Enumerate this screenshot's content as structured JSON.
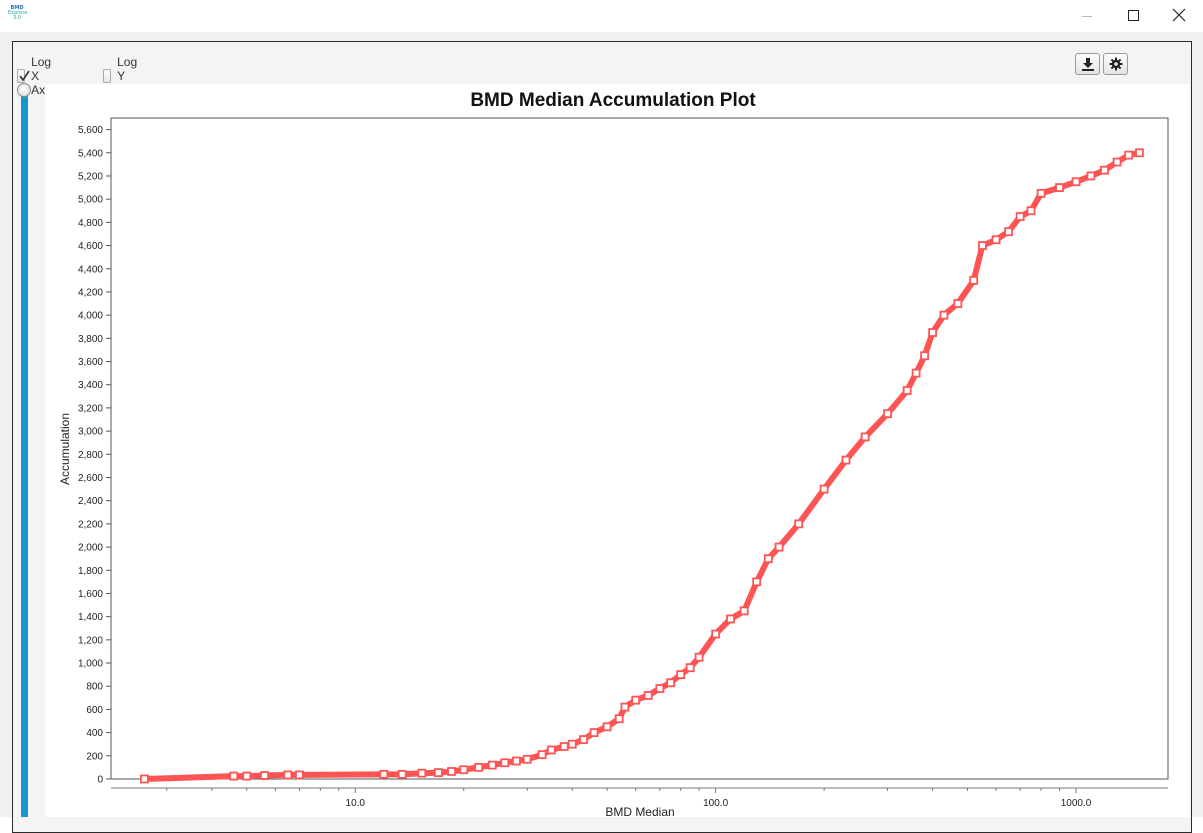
{
  "window": {
    "app_icon_text": [
      "BMD",
      "Express",
      "3.0"
    ],
    "controls": [
      "minimize-icon",
      "maximize-icon",
      "close-icon"
    ]
  },
  "toolbar": {
    "buttons": [
      "download-icon",
      "gear-icon"
    ]
  },
  "options": {
    "log_x_label": "Log X Axis",
    "log_x_checked": true,
    "log_y_label": "Log Y Axis",
    "log_y_checked": false
  },
  "colors": {
    "series": "#ff5454",
    "slider": "#1796cd"
  },
  "chart_data": {
    "type": "line",
    "title": "BMD Median Accumulation Plot",
    "xlabel": "BMD Median",
    "ylabel": "Accumulation",
    "x_scale": "log",
    "xlim": [
      2.1,
      1800
    ],
    "ylim": [
      0,
      5700
    ],
    "x_ticks": [
      10.0,
      100.0,
      1000.0
    ],
    "x_tick_labels": [
      "10.0",
      "100.0",
      "1000.0"
    ],
    "y_ticks": [
      0,
      200,
      400,
      600,
      800,
      1000,
      1200,
      1400,
      1600,
      1800,
      2000,
      2200,
      2400,
      2600,
      2800,
      3000,
      3200,
      3400,
      3600,
      3800,
      4000,
      4200,
      4400,
      4600,
      4800,
      5000,
      5200,
      5400,
      5600
    ],
    "y_tick_labels": [
      "0",
      "200",
      "400",
      "600",
      "800",
      "1,000",
      "1,200",
      "1,400",
      "1,600",
      "1,800",
      "2,000",
      "2,200",
      "2,400",
      "2,600",
      "2,800",
      "3,000",
      "3,200",
      "3,400",
      "3,600",
      "3,800",
      "4,000",
      "4,200",
      "4,400",
      "4,600",
      "4,800",
      "5,000",
      "5,200",
      "5,400",
      "5,600"
    ],
    "grid": false,
    "legend": "none",
    "marker": "square",
    "series": [
      {
        "x": [
          2.6,
          4.6,
          5.0,
          5.6,
          6.5,
          7.0,
          12.0,
          13.5,
          15.3,
          17.0,
          18.5,
          20.0,
          22.0,
          24.0,
          26.0,
          28.0,
          30.0,
          33.0,
          35.0,
          38.0,
          40.0,
          43.0,
          46.0,
          50.0,
          54.0,
          56.0,
          60.0,
          65.0,
          70.0,
          75.0,
          80.0,
          85.0,
          90.0,
          100.0,
          110.0,
          120.0,
          130.0,
          140.0,
          150.0,
          170.0,
          200.0,
          230.0,
          260.0,
          300.0,
          340.0,
          360.0,
          380.0,
          400.0,
          430.0,
          470.0,
          520.0,
          550.0,
          600.0,
          650.0,
          700.0,
          750.0,
          800.0,
          900.0,
          1000.0,
          1100.0,
          1200.0,
          1300.0,
          1400.0,
          1500.0
        ],
        "y": [
          0,
          25,
          25,
          30,
          35,
          35,
          40,
          40,
          50,
          55,
          65,
          80,
          100,
          120,
          140,
          155,
          170,
          210,
          250,
          280,
          300,
          340,
          400,
          450,
          520,
          620,
          680,
          720,
          780,
          830,
          900,
          960,
          1050,
          1250,
          1380,
          1450,
          1700,
          1900,
          2000,
          2200,
          2500,
          2750,
          2950,
          3150,
          3350,
          3500,
          3650,
          3850,
          4000,
          4100,
          4300,
          4600,
          4650,
          4720,
          4850,
          4900,
          5050,
          5100,
          5150,
          5200,
          5250,
          5320,
          5380,
          5400
        ]
      }
    ]
  }
}
